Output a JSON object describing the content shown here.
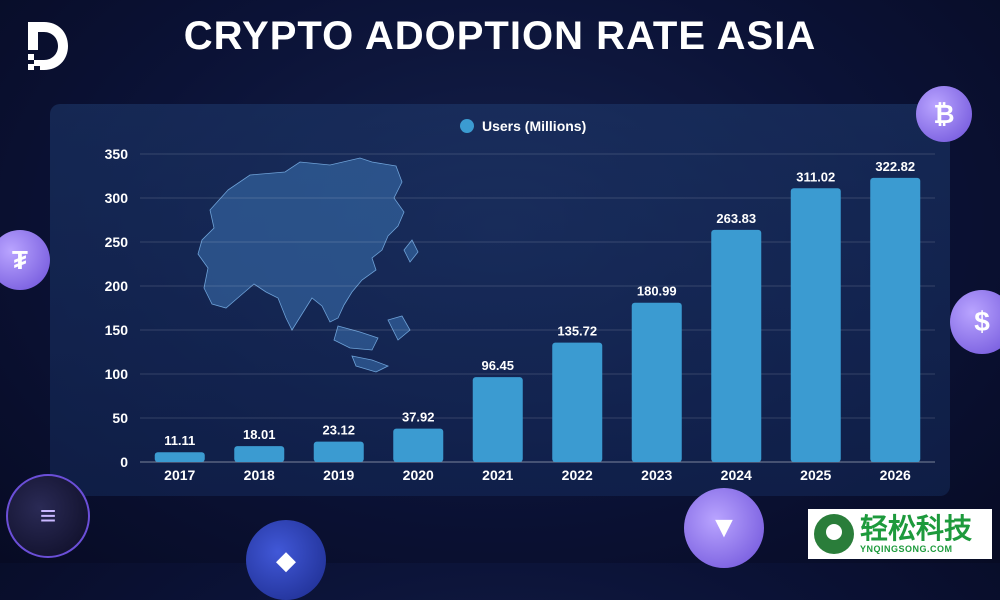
{
  "header": {
    "title": "CRYPTO ADOPTION RATE ASIA"
  },
  "legend": {
    "label": "Users (Millions)"
  },
  "colors": {
    "bar": "#3b9bd1",
    "accent": "#8a6cf0",
    "background": "#0b1236"
  },
  "chart_data": {
    "type": "bar",
    "title": "CRYPTO ADOPTION RATE ASIA",
    "series_name": "Users (Millions)",
    "categories": [
      "2017",
      "2018",
      "2019",
      "2020",
      "2021",
      "2022",
      "2023",
      "2024",
      "2025",
      "2026"
    ],
    "values": [
      11.11,
      18.01,
      23.12,
      37.92,
      96.45,
      135.72,
      180.99,
      263.83,
      311.02,
      322.82
    ],
    "ylim": [
      0,
      350
    ],
    "yticks": [
      0,
      50,
      100,
      150,
      200,
      250,
      300,
      350
    ],
    "grid": true,
    "legend_position": "top-center",
    "xlabel": "",
    "ylabel": ""
  },
  "watermark": {
    "brand_cn": "轻松科技",
    "brand_en": "YNQINGSONG.COM"
  },
  "icons": [
    "logo-icon",
    "bitcoin-coin-icon",
    "tether-coin-icon",
    "usdc-coin-icon",
    "solana-coin-icon",
    "ethereum-coin-icon",
    "tron-coin-icon",
    "asia-map-icon"
  ]
}
